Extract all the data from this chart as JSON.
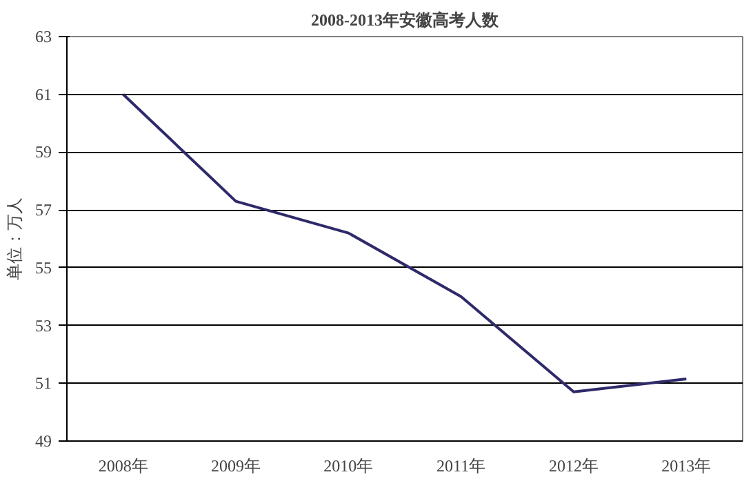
{
  "chart_data": {
    "type": "line",
    "title": "2008-2013年安徽高考人数",
    "ylabel": "单位：万人",
    "categories": [
      "2008年",
      "2009年",
      "2010年",
      "2011年",
      "2012年",
      "2013年"
    ],
    "series": [
      {
        "color": "#2e2a6a",
        "values": [
          61,
          57.3,
          56.2,
          54.0,
          50.7,
          51.15
        ]
      }
    ],
    "ylim": [
      49,
      63
    ],
    "yticks": [
      49,
      51,
      53,
      55,
      57,
      59,
      61,
      63
    ],
    "grid": "y",
    "marker": "none",
    "line_style": "solid"
  }
}
